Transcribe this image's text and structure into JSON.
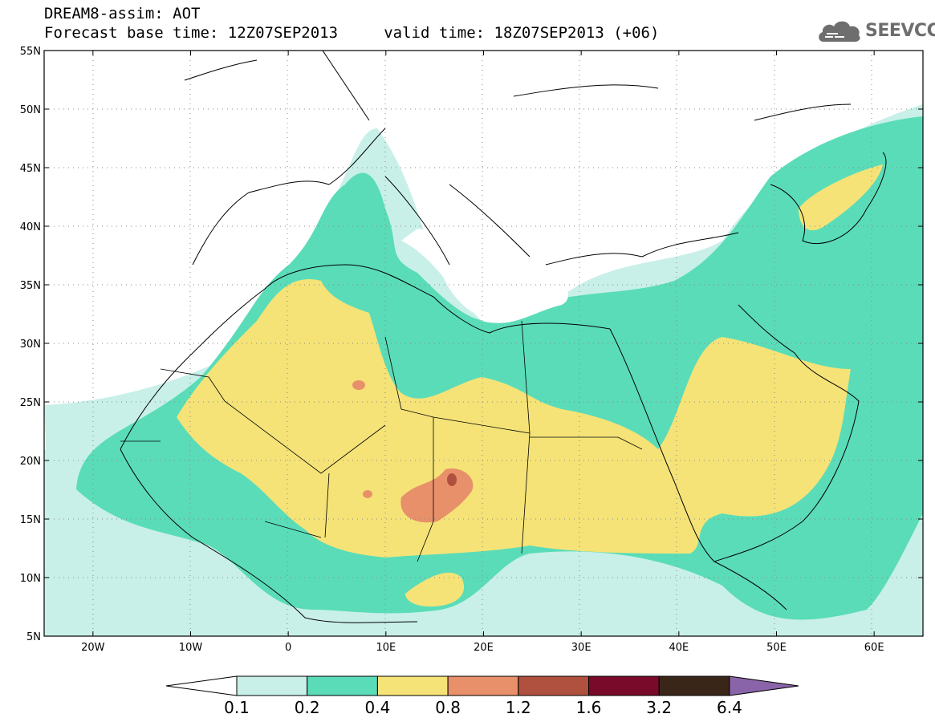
{
  "title": {
    "line1": "DREAM8-assim: AOT",
    "line2": "Forecast base time: 12Z07SEP2013     valid time: 18Z07SEP2013 (+06)"
  },
  "logo": {
    "text": "SEEVCCC",
    "icon": "cloud-icon"
  },
  "map": {
    "lon_range": [
      -25,
      65
    ],
    "lat_range": [
      5,
      55
    ],
    "lat_ticks": [
      {
        "value": 55,
        "label": "55N"
      },
      {
        "value": 50,
        "label": "50N"
      },
      {
        "value": 45,
        "label": "45N"
      },
      {
        "value": 40,
        "label": "40N"
      },
      {
        "value": 35,
        "label": "35N"
      },
      {
        "value": 30,
        "label": "30N"
      },
      {
        "value": 25,
        "label": "25N"
      },
      {
        "value": 20,
        "label": "20N"
      },
      {
        "value": 15,
        "label": "15N"
      },
      {
        "value": 10,
        "label": "10N"
      },
      {
        "value": 5,
        "label": "5N"
      }
    ],
    "lon_ticks": [
      {
        "value": -20,
        "label": "20W"
      },
      {
        "value": -10,
        "label": "10W"
      },
      {
        "value": 0,
        "label": "0"
      },
      {
        "value": 10,
        "label": "10E"
      },
      {
        "value": 20,
        "label": "20E"
      },
      {
        "value": 30,
        "label": "30E"
      },
      {
        "value": 40,
        "label": "40E"
      },
      {
        "value": 50,
        "label": "50E"
      },
      {
        "value": 60,
        "label": "60E"
      }
    ],
    "grid": "dotted"
  },
  "colorbar": {
    "labels": [
      "0.1",
      "0.2",
      "0.4",
      "0.8",
      "1.2",
      "1.6",
      "3.2",
      "6.4"
    ],
    "colors": [
      "#ffffff",
      "#c8f0e8",
      "#5adcb8",
      "#f5e378",
      "#e8906a",
      "#b0503e",
      "#7a0a2a",
      "#3a2618",
      "#8a64a8"
    ]
  }
}
